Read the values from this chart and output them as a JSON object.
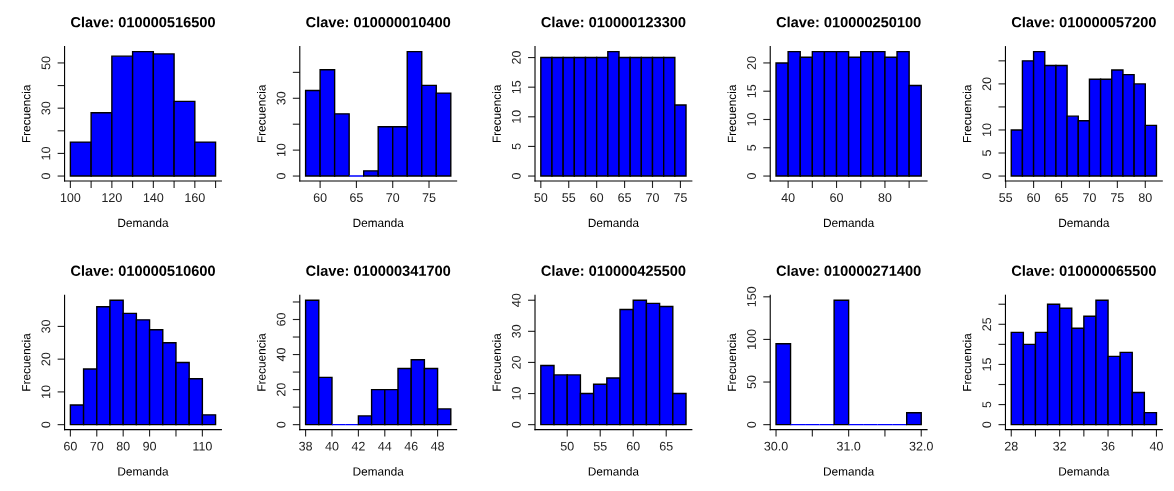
{
  "chart_data": [
    {
      "type": "histogram",
      "title": "Clave: 010000516500",
      "xlabel": "Demanda",
      "ylabel": "Frecuencia",
      "color": "#0000ff",
      "bins": [
        100,
        110,
        120,
        130,
        140,
        150,
        160,
        170
      ],
      "values": [
        15,
        28,
        53,
        55,
        54,
        33,
        15
      ],
      "xlim": [
        97.2,
        172.8
      ],
      "ylim": [
        -2.2,
        57.2
      ],
      "xticks": [
        100,
        {
          "value": 110,
          "label": null
        },
        120,
        {
          "value": 130,
          "label": null
        },
        140,
        {
          "value": 150,
          "label": null
        },
        160,
        {
          "value": 170,
          "label": null
        }
      ],
      "yticks": [
        0,
        10,
        {
          "value": 20,
          "label": null
        },
        30,
        {
          "value": 40,
          "label": null
        },
        50
      ],
      "grid": false
    },
    {
      "type": "histogram",
      "title": "Clave: 010000010400",
      "xlabel": "Demanda",
      "ylabel": "Frecuencia",
      "color": "#0000ff",
      "bins": [
        58,
        60,
        62,
        64,
        66,
        68,
        70,
        72,
        74,
        76,
        78
      ],
      "values": [
        33,
        41,
        24,
        0,
        2,
        19,
        19,
        48,
        35,
        32
      ],
      "xlim": [
        57.2,
        78.8
      ],
      "ylim": [
        -1.92,
        49.92
      ],
      "xticks": [
        60,
        65,
        70,
        75
      ],
      "yticks": [
        0,
        10,
        {
          "value": 20,
          "label": null
        },
        30,
        {
          "value": 40,
          "label": null
        }
      ],
      "grid": false
    },
    {
      "type": "histogram",
      "title": "Clave: 010000123300",
      "xlabel": "Demanda",
      "ylabel": "Frecuencia",
      "color": "#0000ff",
      "bins": [
        50,
        52,
        54,
        56,
        58,
        60,
        62,
        64,
        66,
        68,
        70,
        72,
        74,
        76
      ],
      "values": [
        20,
        20,
        20,
        20,
        20,
        20,
        21,
        20,
        20,
        20,
        20,
        20,
        12
      ],
      "xlim": [
        48.96,
        77.04
      ],
      "ylim": [
        -0.84,
        21.84
      ],
      "xticks": [
        50,
        55,
        60,
        65,
        70,
        75
      ],
      "yticks": [
        0,
        5,
        10,
        15,
        20
      ],
      "grid": false
    },
    {
      "type": "histogram",
      "title": "Clave: 010000250100",
      "xlabel": "Demanda",
      "ylabel": "Frecuencia",
      "color": "#0000ff",
      "bins": [
        35,
        40,
        45,
        50,
        55,
        60,
        65,
        70,
        75,
        80,
        85,
        90,
        95
      ],
      "values": [
        20,
        22,
        21,
        22,
        22,
        22,
        21,
        22,
        22,
        21,
        22,
        16
      ],
      "xlim": [
        32.6,
        97.4
      ],
      "ylim": [
        -0.88,
        22.88
      ],
      "xticks": [
        40,
        {
          "value": 50,
          "label": null
        },
        60,
        {
          "value": 70,
          "label": null
        },
        80,
        {
          "value": 90,
          "label": null
        }
      ],
      "yticks": [
        0,
        5,
        10,
        15,
        20
      ],
      "grid": false
    },
    {
      "type": "histogram",
      "title": "Clave: 010000057200",
      "xlabel": "Demanda",
      "ylabel": "Frecuencia",
      "color": "#0000ff",
      "bins": [
        56,
        58,
        60,
        62,
        64,
        66,
        68,
        70,
        72,
        74,
        76,
        78,
        80,
        82
      ],
      "values": [
        10,
        25,
        27,
        24,
        24,
        13,
        12,
        21,
        21,
        23,
        22,
        20,
        11
      ],
      "xlim": [
        54.96,
        83.04
      ],
      "ylim": [
        -1.08,
        28.08
      ],
      "xticks": [
        55,
        60,
        65,
        70,
        75,
        80
      ],
      "yticks": [
        0,
        5,
        10,
        {
          "value": 15,
          "label": null
        },
        20,
        {
          "value": 25,
          "label": null
        }
      ],
      "grid": false
    },
    {
      "type": "histogram",
      "title": "Clave: 010000510600",
      "xlabel": "Demanda",
      "ylabel": "Frecuencia",
      "color": "#0000ff",
      "bins": [
        60,
        65,
        70,
        75,
        80,
        85,
        90,
        95,
        100,
        105,
        110,
        115
      ],
      "values": [
        6,
        17,
        36,
        38,
        34,
        32,
        29,
        25,
        19,
        14,
        3
      ],
      "xlim": [
        57.8,
        117.2
      ],
      "ylim": [
        -1.52,
        39.52
      ],
      "xticks": [
        60,
        70,
        80,
        90,
        {
          "value": 100,
          "label": null
        },
        110
      ],
      "yticks": [
        0,
        10,
        20,
        30
      ],
      "grid": false
    },
    {
      "type": "histogram",
      "title": "Clave: 010000341700",
      "xlabel": "Demanda",
      "ylabel": "Frecuencia",
      "color": "#0000ff",
      "bins": [
        38,
        39,
        40,
        41,
        42,
        43,
        44,
        45,
        46,
        47,
        48,
        49
      ],
      "values": [
        71,
        27,
        0,
        0,
        5,
        20,
        20,
        32,
        37,
        32,
        9
      ],
      "xlim": [
        37.56,
        49.44
      ],
      "ylim": [
        -2.84,
        73.84
      ],
      "xticks": [
        38,
        40,
        42,
        44,
        46,
        48
      ],
      "yticks": [
        0,
        {
          "value": 10,
          "label": null
        },
        20,
        {
          "value": 30,
          "label": null
        },
        40,
        {
          "value": 50,
          "label": null
        },
        60,
        {
          "value": 70,
          "label": null
        }
      ],
      "grid": false
    },
    {
      "type": "histogram",
      "title": "Clave: 010000425500",
      "xlabel": "Demanda",
      "ylabel": "Frecuencia",
      "color": "#0000ff",
      "bins": [
        46,
        48,
        50,
        52,
        54,
        56,
        58,
        60,
        62,
        64,
        66,
        68
      ],
      "values": [
        19,
        16,
        16,
        10,
        13,
        15,
        37,
        40,
        39,
        38,
        10
      ],
      "xlim": [
        45.12,
        68.88
      ],
      "ylim": [
        -1.6,
        41.6
      ],
      "xticks": [
        50,
        55,
        60,
        65
      ],
      "yticks": [
        0,
        10,
        20,
        30,
        40
      ],
      "grid": false
    },
    {
      "type": "histogram",
      "title": "Clave: 010000271400",
      "xlabel": "Demanda",
      "ylabel": "Frecuencia",
      "color": "#0000ff",
      "bins": [
        30.0,
        30.2,
        30.4,
        30.6,
        30.8,
        31.0,
        31.2,
        31.4,
        31.6,
        31.8,
        32.0
      ],
      "values": [
        95,
        0,
        0,
        0,
        146,
        0,
        0,
        0,
        0,
        14
      ],
      "xlim": [
        29.92,
        32.08
      ],
      "ylim": [
        -5.84,
        151.84
      ],
      "xticks": [
        {
          "value": 30.0,
          "label": "30.0"
        },
        {
          "value": 30.5,
          "label": null
        },
        {
          "value": 31.0,
          "label": "31.0"
        },
        {
          "value": 31.5,
          "label": null
        },
        {
          "value": 32.0,
          "label": "32.0"
        }
      ],
      "yticks": [
        0,
        50,
        100,
        150
      ],
      "grid": false
    },
    {
      "type": "histogram",
      "title": "Clave: 010000065500",
      "xlabel": "Demanda",
      "ylabel": "Frecuencia",
      "color": "#0000ff",
      "bins": [
        28,
        29,
        30,
        31,
        32,
        33,
        34,
        35,
        36,
        37,
        38,
        39,
        40
      ],
      "values": [
        23,
        20,
        23,
        30,
        29,
        24,
        27,
        31,
        17,
        18,
        8,
        3
      ],
      "xlim": [
        27.52,
        40.48
      ],
      "ylim": [
        -1.24,
        32.24
      ],
      "xticks": [
        28,
        {
          "value": 30,
          "label": null
        },
        32,
        {
          "value": 34,
          "label": null
        },
        36,
        {
          "value": 38,
          "label": null
        },
        40
      ],
      "yticks": [
        0,
        5,
        {
          "value": 10,
          "label": null
        },
        15,
        {
          "value": 20,
          "label": null
        },
        25,
        {
          "value": 30,
          "label": null
        }
      ],
      "grid": false
    }
  ]
}
